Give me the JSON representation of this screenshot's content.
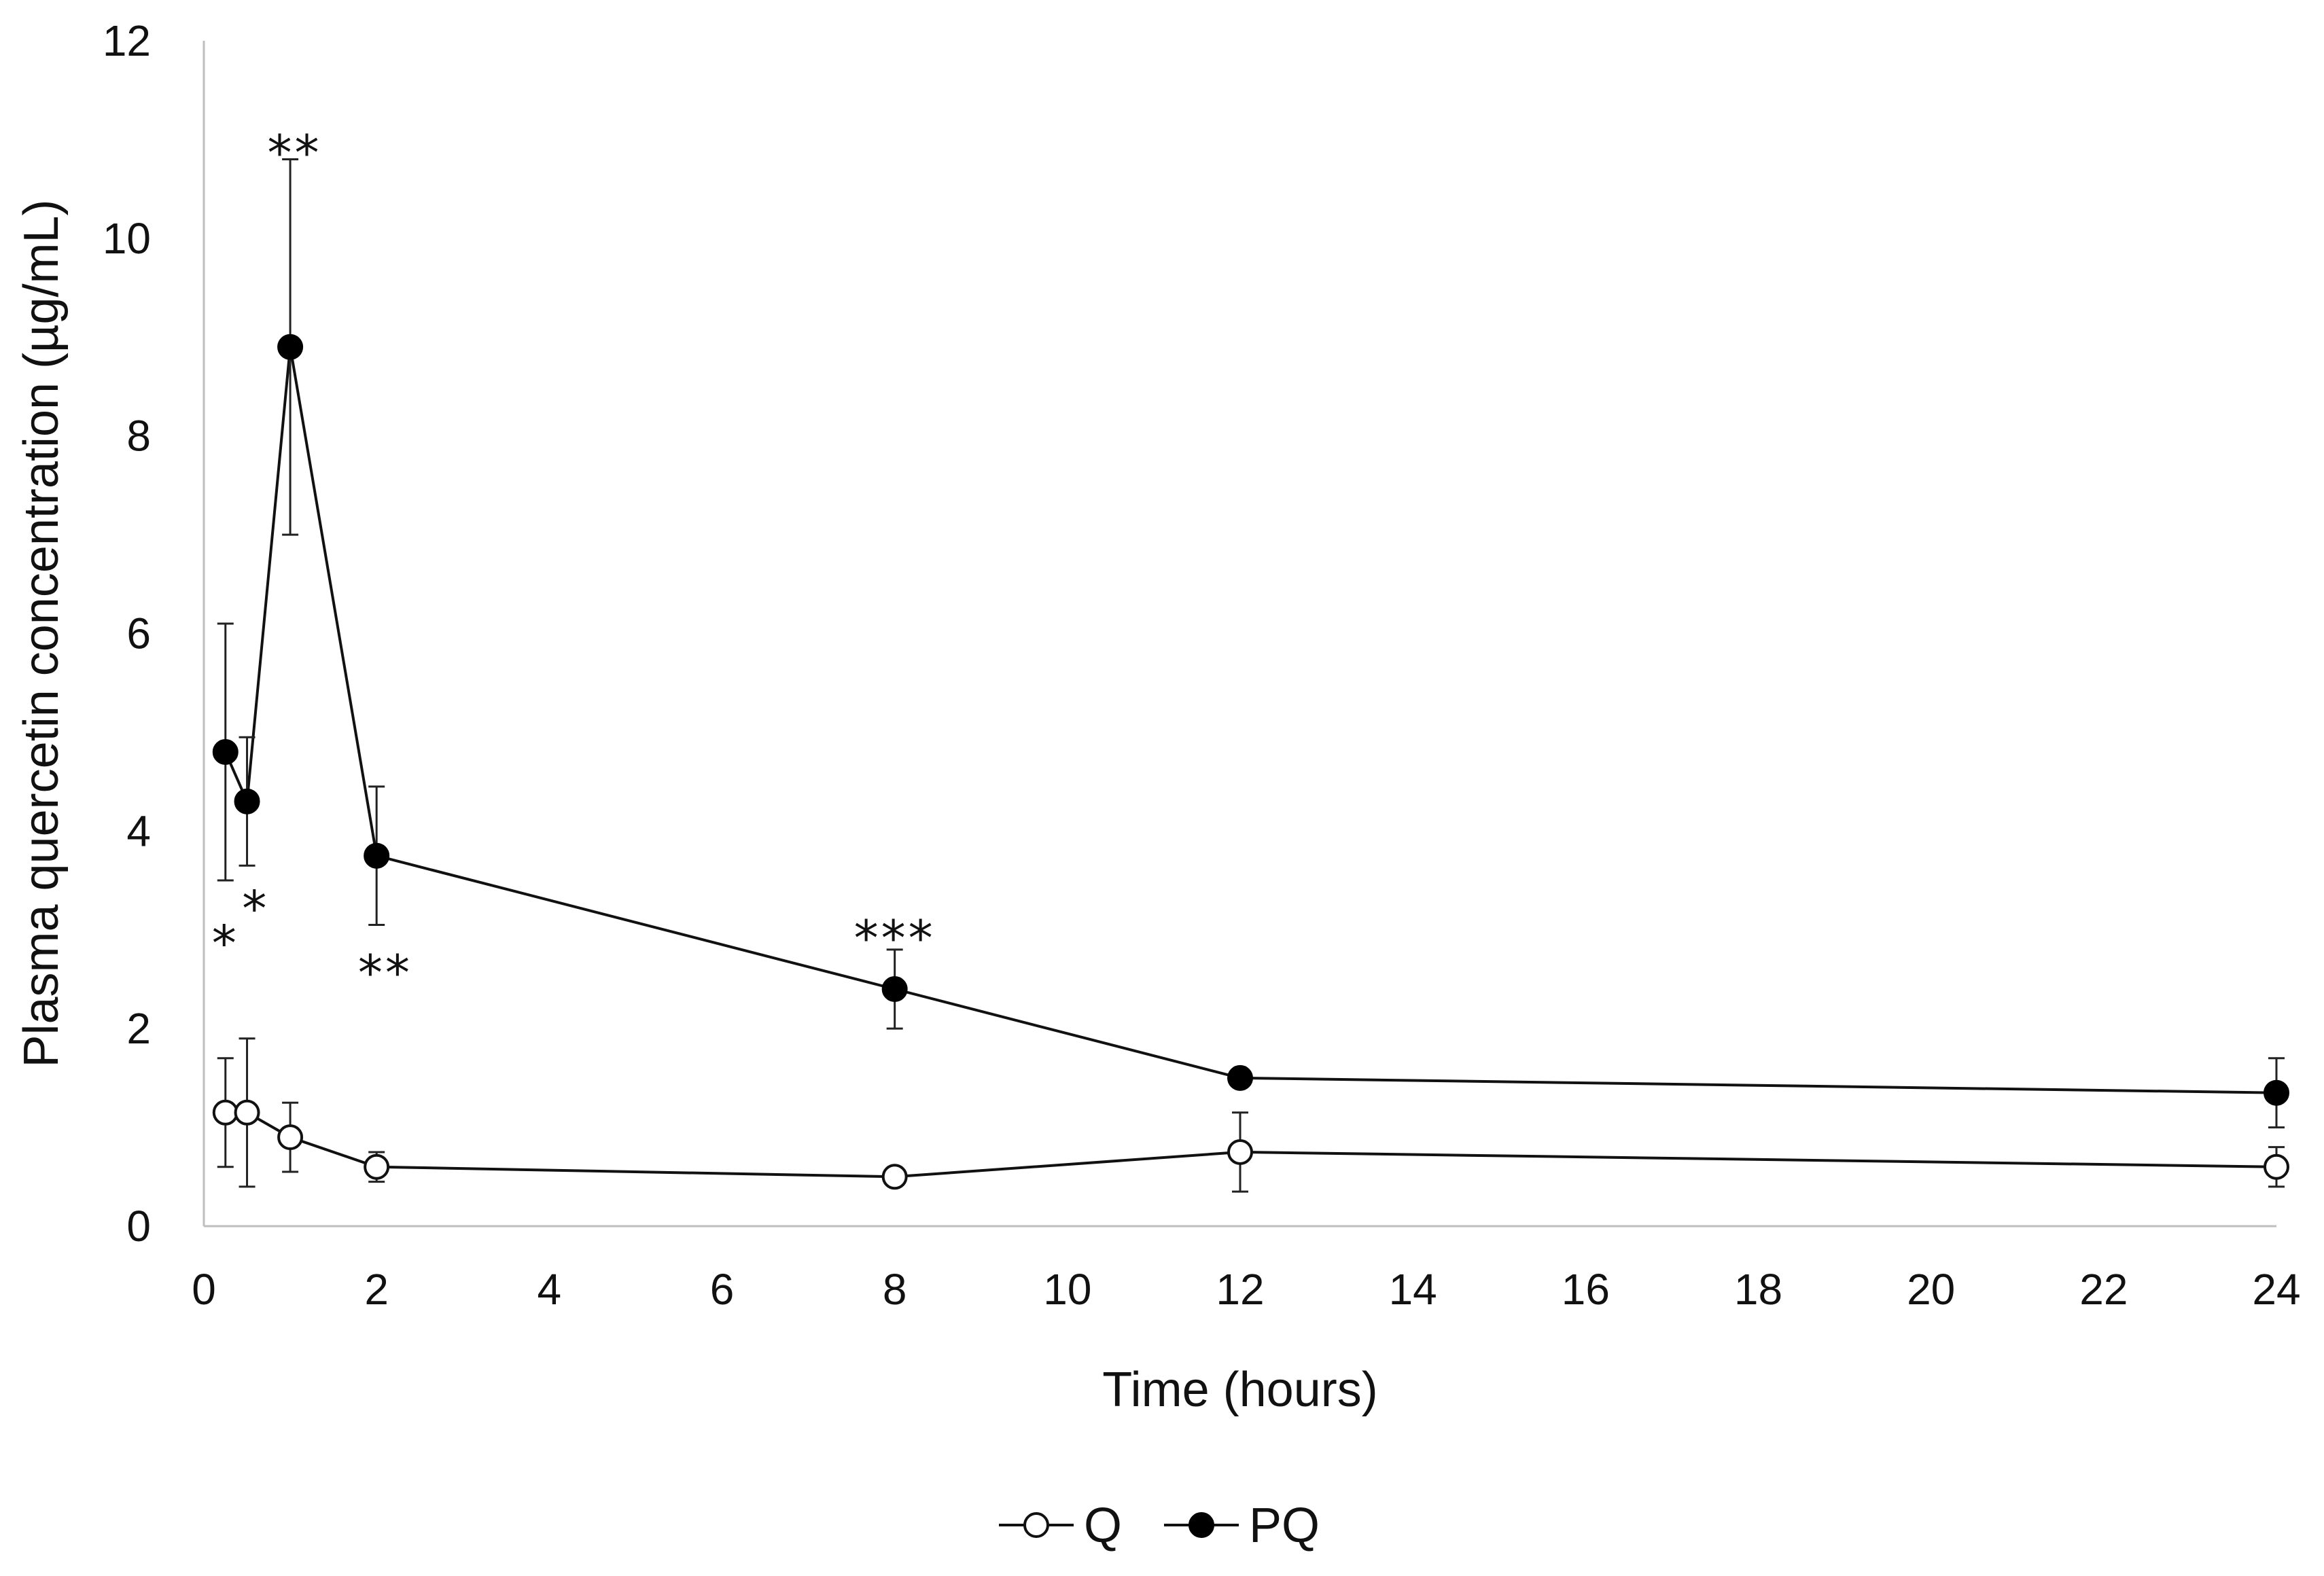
{
  "chart_data": {
    "type": "line",
    "title": "",
    "xlabel": "Time (hours)",
    "ylabel": "Plasma quercetin concentration (µg/mL)",
    "xlim": [
      0,
      24
    ],
    "ylim": [
      0,
      12
    ],
    "xticks": [
      0,
      2,
      4,
      6,
      8,
      10,
      12,
      14,
      16,
      18,
      20,
      22,
      24
    ],
    "yticks": [
      0,
      2,
      4,
      6,
      8,
      10,
      12
    ],
    "grid": false,
    "legend_position": "bottom-center",
    "series": [
      {
        "name": "Q",
        "marker": "open-circle",
        "color": "#000000",
        "x": [
          0.25,
          0.5,
          1,
          2,
          8,
          12,
          24
        ],
        "y": [
          1.15,
          1.15,
          0.9,
          0.6,
          0.5,
          0.75,
          0.6
        ],
        "error": [
          0.55,
          0.75,
          0.35,
          0.15,
          0.05,
          0.4,
          0.2
        ]
      },
      {
        "name": "PQ",
        "marker": "filled-circle",
        "color": "#000000",
        "x": [
          0.25,
          0.5,
          1,
          2,
          8,
          12,
          24
        ],
        "y": [
          4.8,
          4.3,
          8.9,
          3.75,
          2.4,
          1.5,
          1.35
        ],
        "error": [
          1.3,
          0.65,
          1.9,
          0.7,
          0.4,
          0.05,
          0.35
        ]
      }
    ],
    "annotations": [
      {
        "text": "*",
        "x": 0.25,
        "y": 2.9
      },
      {
        "text": "*",
        "x": 0.6,
        "y": 3.25
      },
      {
        "text": "**",
        "x": 1.05,
        "y": 10.9
      },
      {
        "text": "**",
        "x": 2.1,
        "y": 2.6
      },
      {
        "text": "***",
        "x": 8.0,
        "y": 2.95
      }
    ]
  }
}
